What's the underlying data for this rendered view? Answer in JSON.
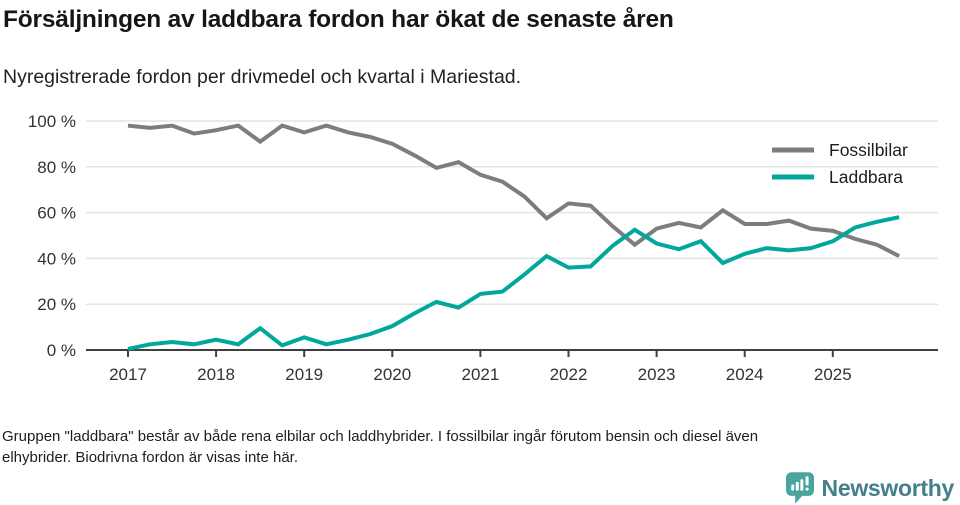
{
  "chart_data": {
    "type": "line",
    "title": "Försäljningen av laddbara fordon har ökat de senaste åren",
    "subtitle": "Nyregistrerade fordon per drivmedel och kvartal i Mariestad.",
    "x_unit": "quarter",
    "categories": [
      "2017Q1",
      "2017Q2",
      "2017Q3",
      "2017Q4",
      "2018Q1",
      "2018Q2",
      "2018Q3",
      "2018Q4",
      "2019Q1",
      "2019Q2",
      "2019Q3",
      "2019Q4",
      "2020Q1",
      "2020Q2",
      "2020Q3",
      "2020Q4",
      "2021Q1",
      "2021Q2",
      "2021Q3",
      "2021Q4",
      "2022Q1",
      "2022Q2",
      "2022Q3",
      "2022Q4",
      "2023Q1",
      "2023Q2",
      "2023Q3",
      "2023Q4",
      "2024Q1",
      "2024Q2",
      "2024Q3",
      "2024Q4",
      "2025Q1",
      "2025Q2",
      "2025Q3",
      "2025Q4"
    ],
    "series": [
      {
        "name": "Fossilbilar",
        "color": "#7d7d7d",
        "values": [
          98,
          97,
          98,
          94.5,
          96,
          98,
          91,
          98,
          95,
          98,
          95,
          93,
          90,
          85,
          79.5,
          82,
          76.5,
          73.5,
          67,
          57.5,
          64,
          63,
          54,
          46,
          53,
          55.5,
          53.5,
          61,
          55,
          55,
          56.5,
          53,
          52,
          48.5,
          46,
          41
        ]
      },
      {
        "name": "Laddbara",
        "color": "#00a79b",
        "values": [
          0.5,
          2.5,
          3.5,
          2.5,
          4.5,
          2.5,
          9.5,
          2,
          5.5,
          2.5,
          4.5,
          7,
          10.5,
          16,
          21,
          18.5,
          24.5,
          25.5,
          33,
          41,
          36,
          36.5,
          45.5,
          52.5,
          46.5,
          44,
          47.5,
          38,
          42,
          44.5,
          43.5,
          44.5,
          47.5,
          53.5,
          56,
          58
        ]
      }
    ],
    "x_tick_labels": [
      "2017",
      "2018",
      "2019",
      "2020",
      "2021",
      "2022",
      "2023",
      "2024",
      "2025"
    ],
    "y_tick_values": [
      0,
      20,
      40,
      60,
      80,
      100
    ],
    "y_tick_labels": [
      "0 %",
      "20 %",
      "40 %",
      "60 %",
      "80 %",
      "100 %"
    ],
    "ylim": [
      0,
      100
    ],
    "grid": true,
    "legend_position": "top-right"
  },
  "footnote": "Gruppen \"laddbara\" består av både rena elbilar och laddhybrider. I fossilbilar ingår förutom bensin och diesel även\nelhybrider. Biodrivna fordon är visas inte här.",
  "brand": {
    "name": "Newsworthy",
    "icon": "newsworthy-pin-bar-chart-icon",
    "text_color": "#44808a",
    "icon_color": "#4aa49e"
  },
  "colors": {
    "grid": "#e4e4e4",
    "axis": "#3f3f3f",
    "tick_text": "#333333"
  }
}
